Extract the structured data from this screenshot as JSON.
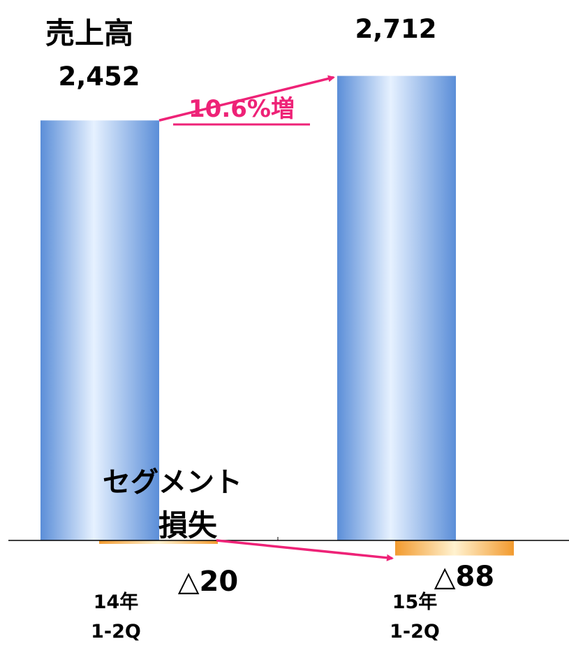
{
  "chart_data": {
    "type": "bar",
    "categories": [
      "14年\n1-2Q",
      "15年\n1-2Q"
    ],
    "series": [
      {
        "name": "売上高",
        "values": [
          2452,
          2712
        ]
      },
      {
        "name": "セグメント損失",
        "values": [
          -20,
          -88
        ]
      }
    ],
    "value_labels": {
      "sales": [
        "2,452",
        "2,712"
      ],
      "loss": [
        "△20",
        "△88"
      ]
    },
    "category_lines": [
      [
        "14年",
        "1-2Q"
      ],
      [
        "15年",
        "1-2Q"
      ]
    ],
    "annotations": {
      "sales_title": "売上高",
      "loss_title_line1": "セグメント",
      "loss_title_line2": "損失",
      "growth": "10.6%増"
    },
    "ylim": [
      -125,
      2850
    ],
    "colors": {
      "sales_bar_edge": "#5b8ed8",
      "sales_bar_center": "#e6f1ff",
      "loss_bar_edge": "#f29a2e",
      "loss_bar_center": "#fff2d0",
      "arrow": "#ee2277",
      "growth_text": "#ee2277",
      "axis": "#000000"
    }
  }
}
